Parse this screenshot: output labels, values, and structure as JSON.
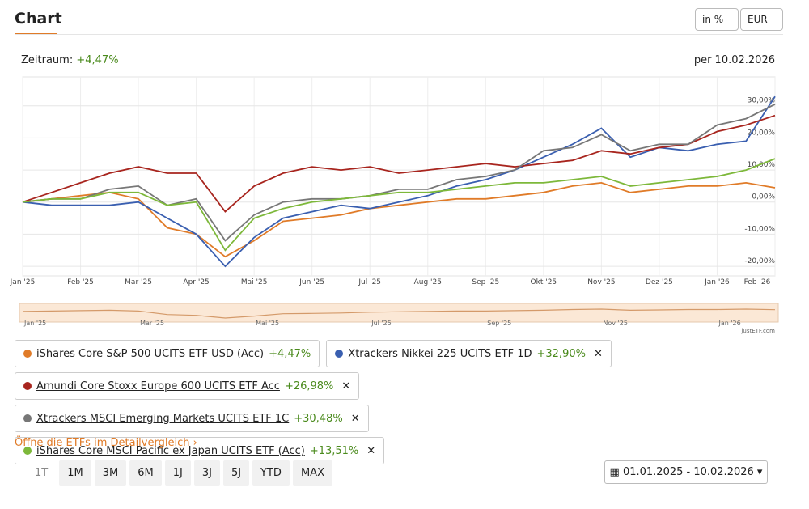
{
  "header": {
    "title": "Chart",
    "unit_select": "in %",
    "currency_select": "EUR"
  },
  "period": {
    "label": "Zeitraum:",
    "value": "+4,47%",
    "as_of": "per 10.02.2026"
  },
  "chart_data": {
    "type": "line",
    "x": [
      "Jan '25",
      null,
      "Feb '25",
      null,
      "Mar '25",
      null,
      "Apr '25",
      null,
      "Mai '25",
      null,
      "Jun '25",
      null,
      "Jul '25",
      null,
      "Aug '25",
      null,
      "Sep '25",
      null,
      "Okt '25",
      null,
      "Nov '25",
      null,
      "Dez '25",
      null,
      "Jan '26",
      null,
      "Feb '26"
    ],
    "ylim": [
      -23,
      39
    ],
    "yticks": [
      {
        "value": -20,
        "label": "-20,00%"
      },
      {
        "value": -10,
        "label": "-10,00%"
      },
      {
        "value": 0,
        "label": "0,00%"
      },
      {
        "value": 10,
        "label": "10,00%"
      },
      {
        "value": 20,
        "label": "20,00%"
      },
      {
        "value": 30,
        "label": "30,00%"
      }
    ],
    "grid": true,
    "series": [
      {
        "name": "iShares Core S&P 500 UCITS ETF USD (Acc)",
        "legend_value": "+4,47%",
        "color": "#e07b28",
        "values": [
          0,
          1,
          2,
          3,
          1,
          -8,
          -10,
          -17,
          -12,
          -6,
          -5,
          -4,
          -2,
          -1,
          0,
          1,
          1,
          2,
          3,
          5,
          6,
          3,
          4,
          5,
          5,
          6,
          4.47
        ]
      },
      {
        "name": "Xtrackers Nikkei 225 UCITS ETF 1D",
        "legend_value": "+32,90%",
        "color": "#3a5fb0",
        "values": [
          0,
          -1,
          -1,
          -1,
          0,
          -5,
          -10,
          -20,
          -11,
          -5,
          -3,
          -1,
          -2,
          0,
          2,
          5,
          7,
          10,
          14,
          18,
          23,
          14,
          17,
          16,
          18,
          19,
          32.9
        ]
      },
      {
        "name": "Amundi Core Stoxx Europe 600 UCITS ETF Acc",
        "legend_value": "+26,98%",
        "color": "#a8251e",
        "values": [
          0,
          3,
          6,
          9,
          11,
          9,
          9,
          -3,
          5,
          9,
          11,
          10,
          11,
          9,
          10,
          11,
          12,
          11,
          12,
          13,
          16,
          15,
          17,
          18,
          22,
          24,
          26.98
        ]
      },
      {
        "name": "Xtrackers MSCI Emerging Markets UCITS ETF 1C",
        "legend_value": "+30,48%",
        "color": "#777777",
        "values": [
          0,
          1,
          1,
          4,
          5,
          -1,
          1,
          -12,
          -4,
          0,
          1,
          1,
          2,
          4,
          4,
          7,
          8,
          10,
          16,
          17,
          21,
          16,
          18,
          18,
          24,
          26,
          30.48
        ]
      },
      {
        "name": "iShares Core MSCI Pacific ex Japan UCITS ETF (Acc)",
        "legend_value": "+13,51%",
        "color": "#7db83a",
        "values": [
          0,
          1,
          1,
          3,
          3,
          -1,
          0,
          -15,
          -5,
          -2,
          0,
          1,
          2,
          3,
          3,
          4,
          5,
          6,
          6,
          7,
          8,
          5,
          6,
          7,
          8,
          10,
          13.51
        ]
      }
    ],
    "source": "justETF.com"
  },
  "ui": {
    "compare_link": "Öffne die ETFs im Detailvergleich",
    "ranges": [
      "1T",
      "1M",
      "3M",
      "6M",
      "1J",
      "3J",
      "5J",
      "YTD",
      "MAX"
    ],
    "date_range": "01.01.2025 - 10.02.2026"
  }
}
